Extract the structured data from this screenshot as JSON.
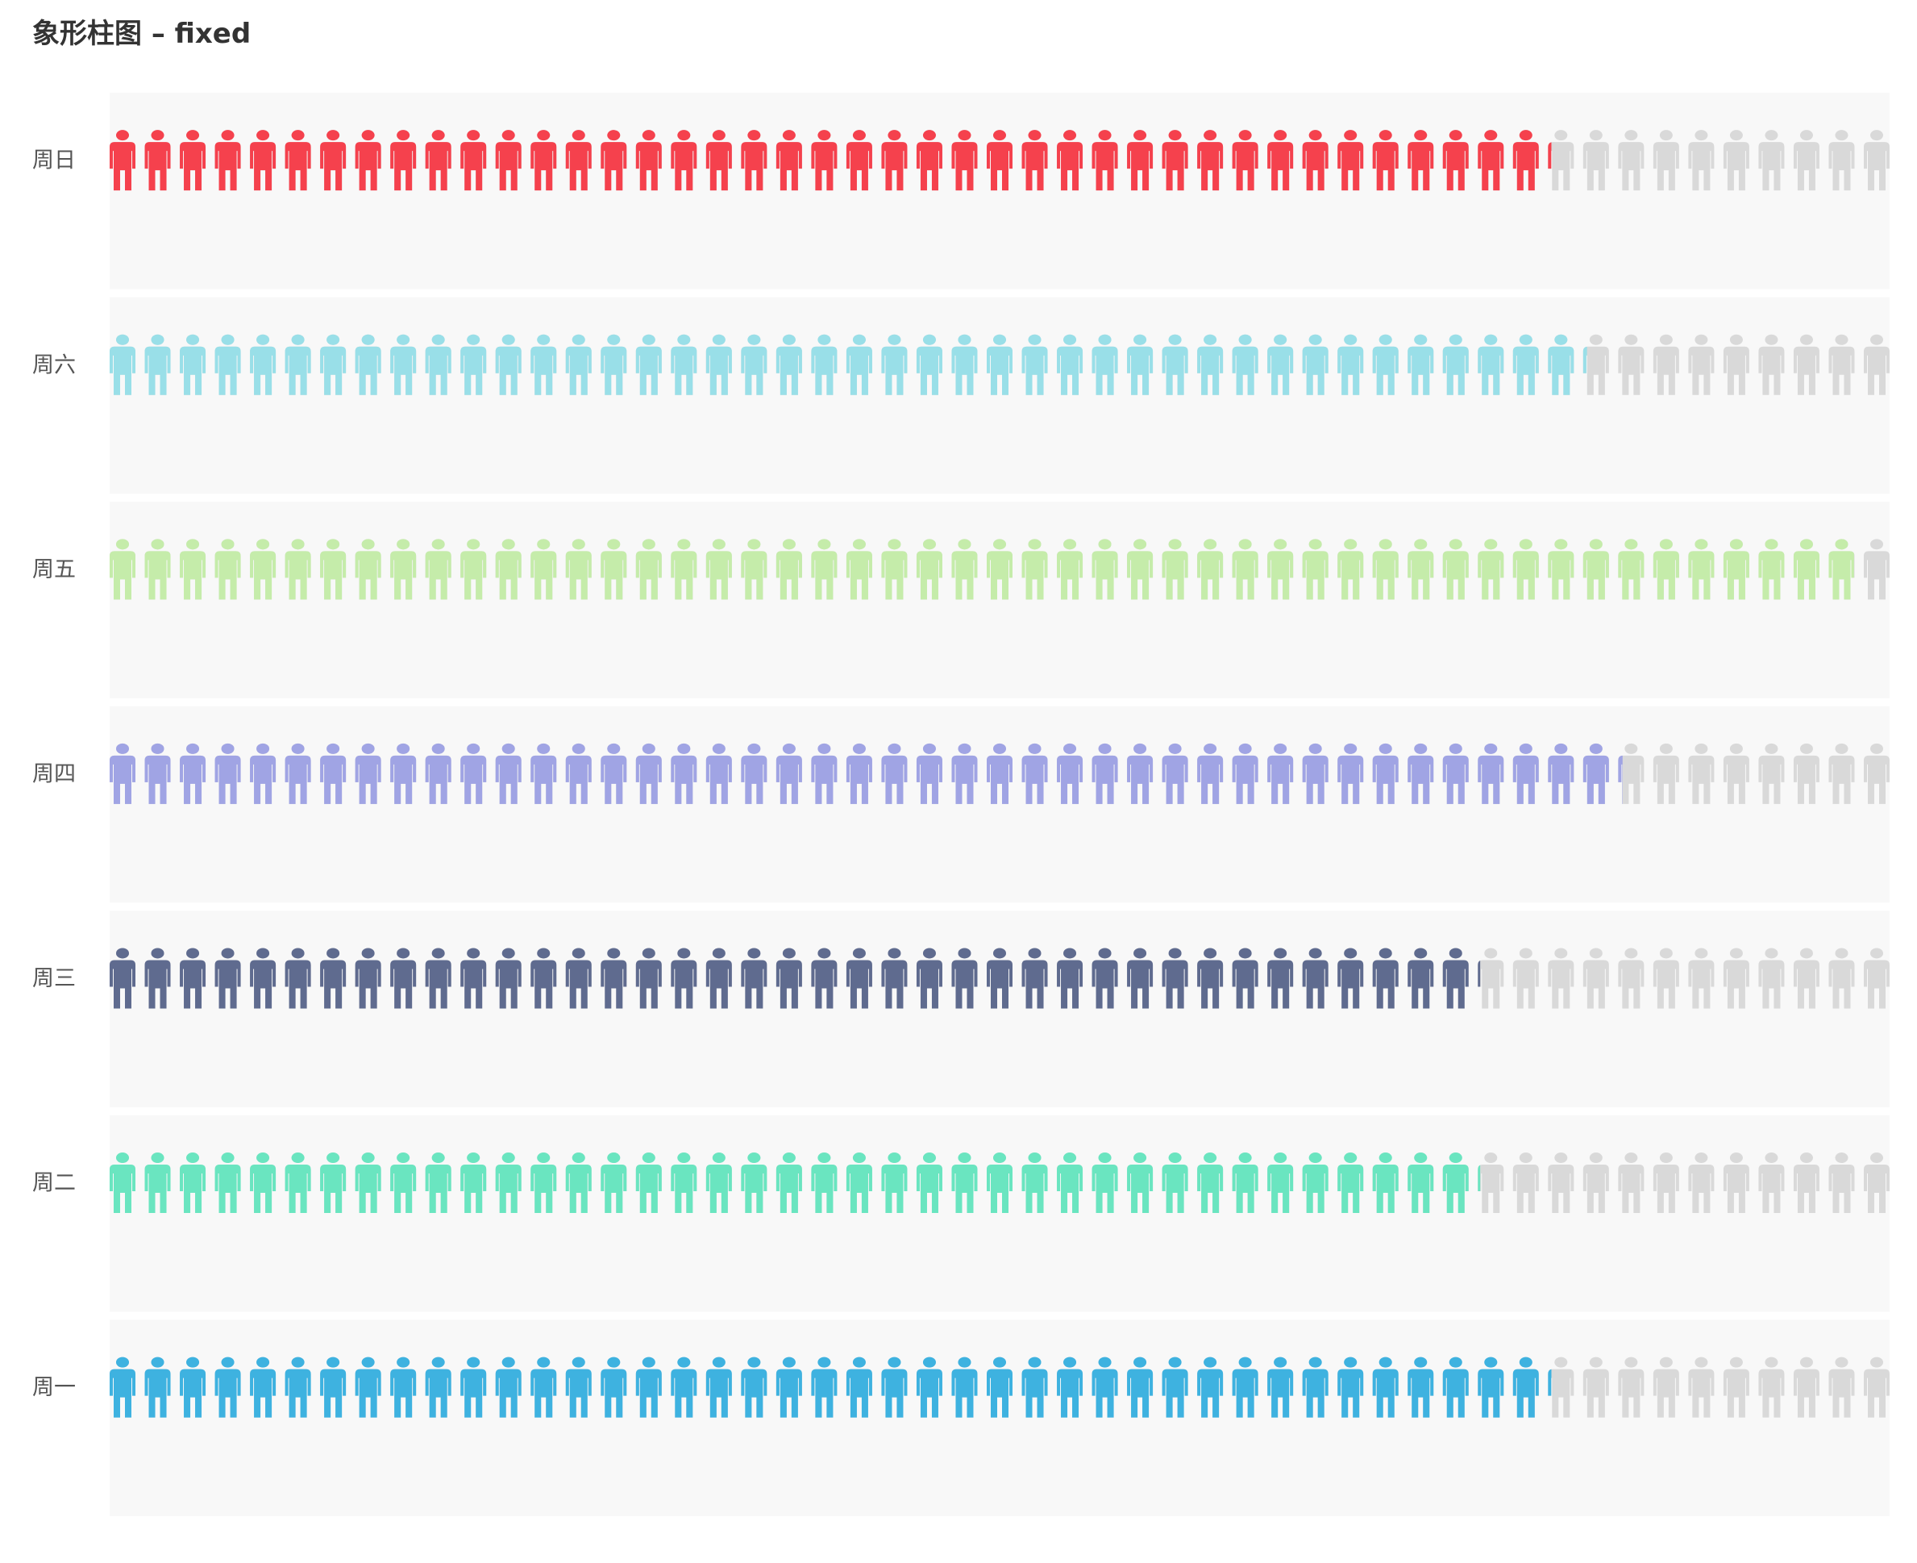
{
  "title": "象形柱图 – fixed",
  "chart_data": {
    "type": "bar",
    "subtype": "pictorial-bar",
    "orientation": "horizontal",
    "symbol": "person-icon",
    "symbol_repeat": "fixed",
    "symbol_total": 51,
    "title": "象形柱图 – fixed",
    "categories": [
      "周日",
      "周六",
      "周五",
      "周四",
      "周三",
      "周二",
      "周一"
    ],
    "values": [
      81,
      83,
      98,
      85,
      77,
      77,
      81
    ],
    "xlim": [
      0,
      100
    ],
    "bar_background": "#f8f8f8",
    "empty_color": "#d9d9d9",
    "colors": [
      "#f5414d",
      "#99dfe8",
      "#c5ecaa",
      "#a0a4e4",
      "#5f6b8f",
      "#6ae5c0",
      "#3eb2e0"
    ],
    "xaxis_visible": false,
    "grid": false,
    "legend": "none"
  }
}
